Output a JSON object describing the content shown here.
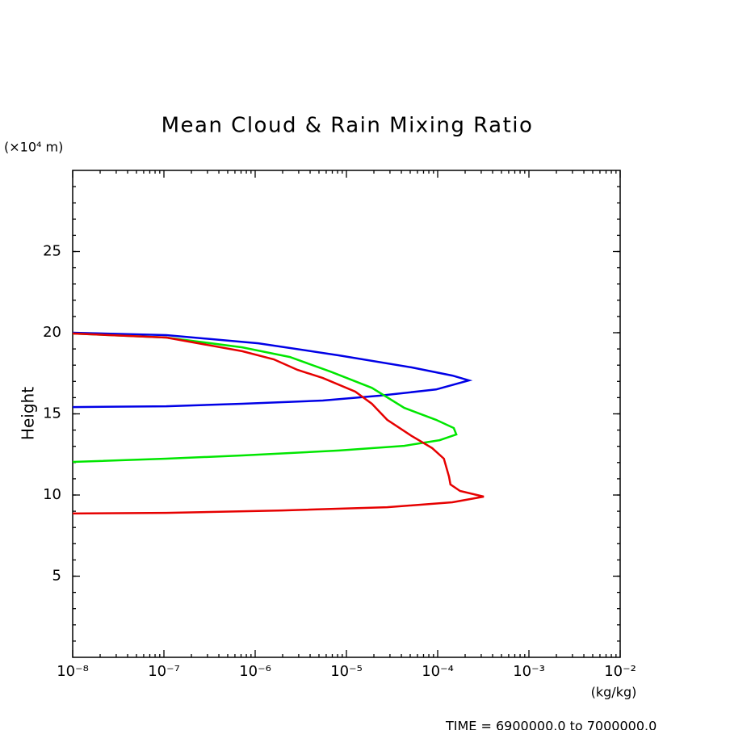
{
  "chart_data": {
    "type": "line",
    "title": "Mean Cloud & Rain Mixing Ratio",
    "y_unit_label": "(×10⁴ m)",
    "ylabel": "Height",
    "xlabel": "(kg/kg)",
    "footer": "TIME = 6900000.0 to 7000000.0",
    "xscale": "log",
    "xlim": [
      1e-08,
      0.01
    ],
    "xticks": [
      {
        "value": 1e-08,
        "label": "10⁻⁸"
      },
      {
        "value": 1e-07,
        "label": "10⁻⁷"
      },
      {
        "value": 1e-06,
        "label": "10⁻⁶"
      },
      {
        "value": 1e-05,
        "label": "10⁻⁵"
      },
      {
        "value": 0.0001,
        "label": "10⁻⁴"
      },
      {
        "value": 0.001,
        "label": "10⁻³"
      },
      {
        "value": 0.01,
        "label": "10⁻²"
      }
    ],
    "ylim": [
      0,
      30
    ],
    "yticks": [
      5,
      10,
      15,
      20,
      25
    ],
    "series": [
      {
        "color": "#0000e6",
        "x": [
          1e-08,
          1.06e-07,
          1.08e-06,
          8.3e-06,
          5.2e-05,
          0.000145,
          0.00022,
          9.6e-05,
          2.3e-05,
          5.5e-06,
          7.2e-07,
          1.06e-07,
          1e-08
        ],
        "y": [
          20.0,
          19.85,
          19.35,
          18.6,
          17.86,
          17.36,
          17.06,
          16.5,
          16.12,
          15.82,
          15.62,
          15.47,
          15.42
        ]
      },
      {
        "color": "#00e600",
        "x": [
          1e-08,
          1.06e-07,
          7.2e-07,
          2.4e-06,
          6.7e-06,
          1.9e-05,
          4.3e-05,
          9.6e-05,
          0.00015,
          0.00016,
          0.000105,
          4.3e-05,
          8.3e-06,
          7.2e-07,
          1.06e-07,
          1e-08
        ],
        "y": [
          19.95,
          19.7,
          19.1,
          18.5,
          17.6,
          16.6,
          15.37,
          14.63,
          14.13,
          13.73,
          13.38,
          13.03,
          12.74,
          12.44,
          12.24,
          12.04
        ]
      },
      {
        "color": "#e60000",
        "x": [
          1e-08,
          1.06e-07,
          7.2e-07,
          1.6e-06,
          2.9e-06,
          5.5e-06,
          1.25e-05,
          1.9e-05,
          2.8e-05,
          5.2e-05,
          8.7e-05,
          0.000117,
          0.000133,
          0.000138,
          0.000176,
          0.00032,
          0.000145,
          2.8e-05,
          2e-06,
          1.06e-07,
          1e-08
        ],
        "y": [
          19.95,
          19.7,
          18.86,
          18.36,
          17.71,
          17.21,
          16.37,
          15.62,
          14.63,
          13.63,
          12.89,
          12.24,
          11.14,
          10.65,
          10.25,
          9.9,
          9.55,
          9.25,
          9.05,
          8.9,
          8.86
        ]
      }
    ]
  }
}
